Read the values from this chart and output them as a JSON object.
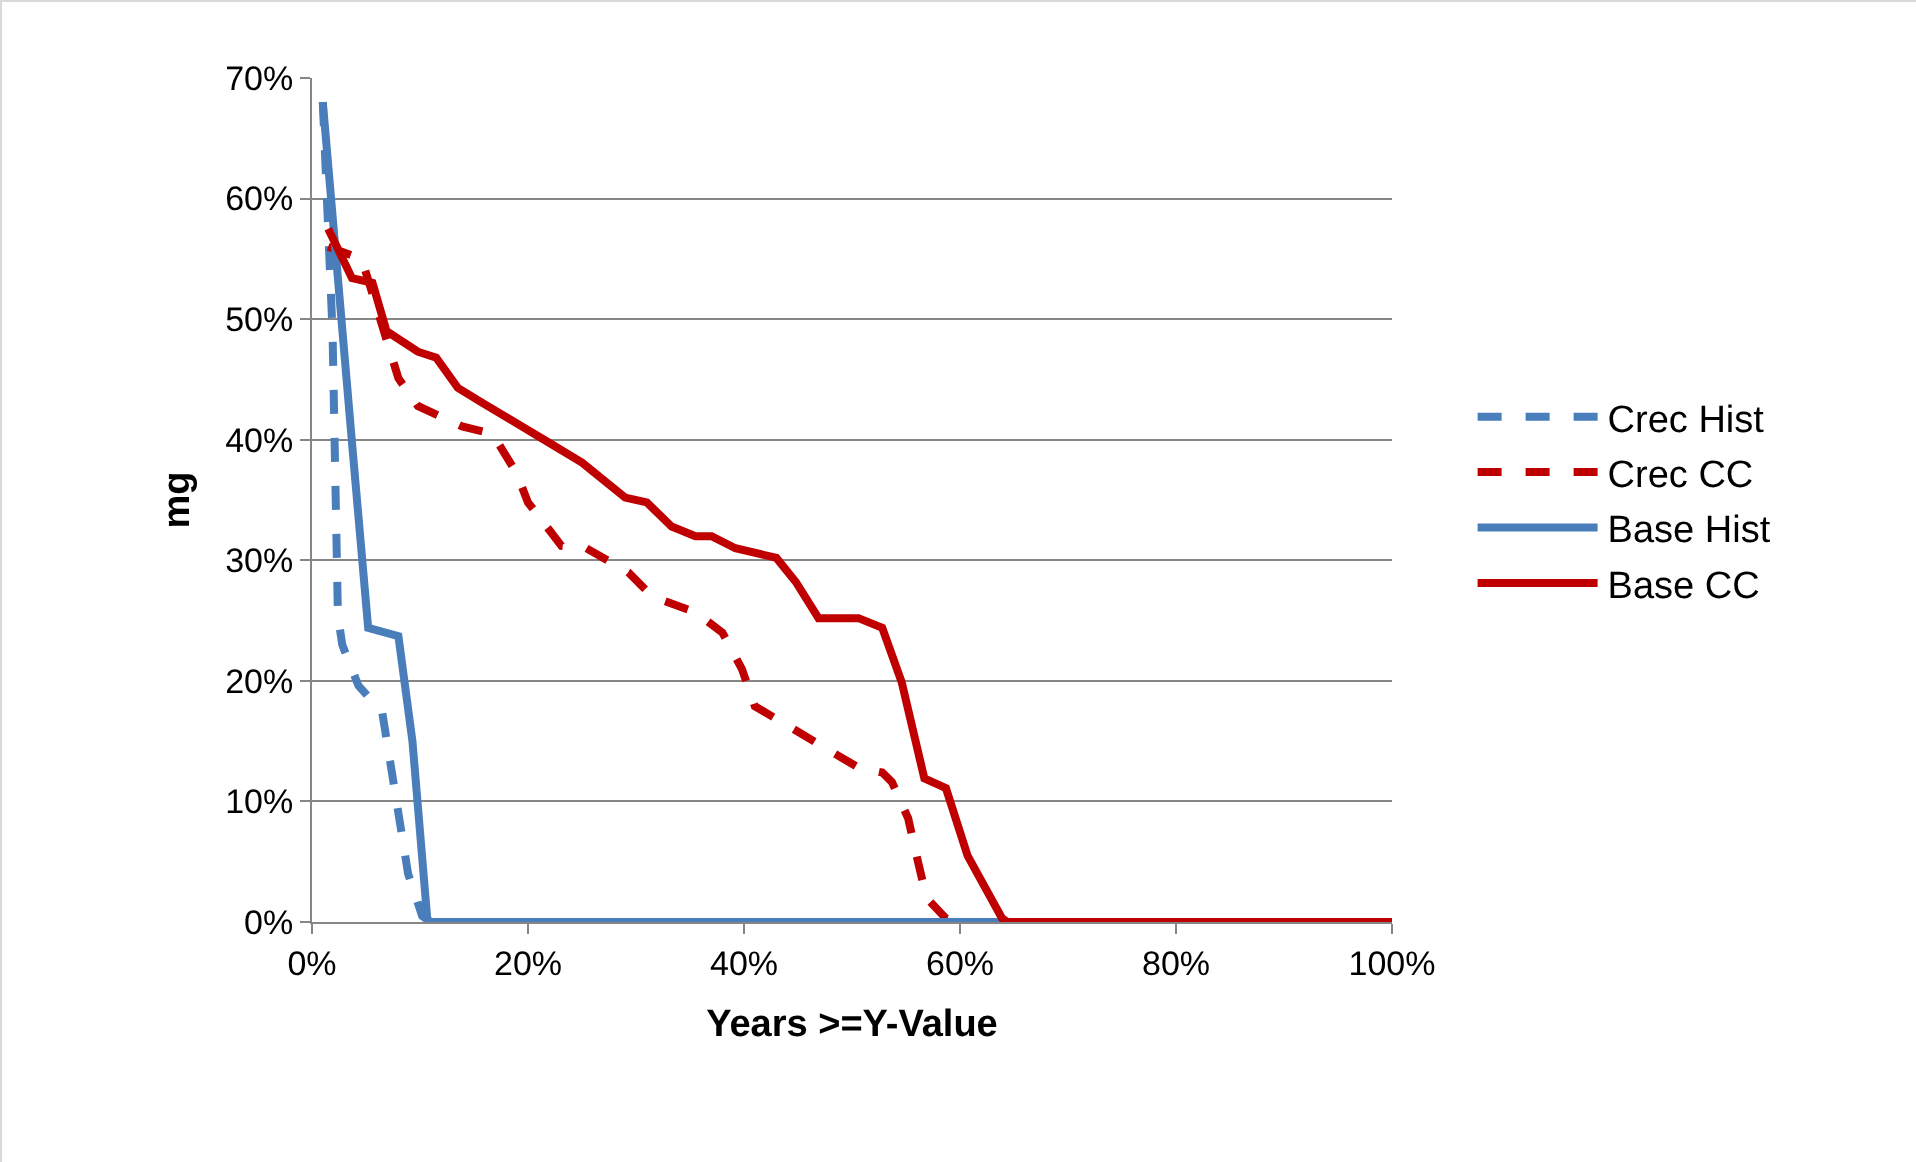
{
  "chart_data": {
    "type": "line",
    "xlabel": "Years >=Y-Value",
    "ylabel": "mg",
    "xlim": [
      0,
      100
    ],
    "xticks": [
      {
        "value": 0,
        "label": "0%"
      },
      {
        "value": 20,
        "label": "20%"
      },
      {
        "value": 40,
        "label": "40%"
      },
      {
        "value": 60,
        "label": "60%"
      },
      {
        "value": 80,
        "label": "80%"
      },
      {
        "value": 100,
        "label": "100%"
      }
    ],
    "ylim": [
      0,
      70
    ],
    "yticks": [
      {
        "value": 0,
        "label": "0%"
      },
      {
        "value": 10,
        "label": "10%"
      },
      {
        "value": 20,
        "label": "20%"
      },
      {
        "value": 30,
        "label": "30%"
      },
      {
        "value": 40,
        "label": "40%"
      },
      {
        "value": 50,
        "label": "50%"
      },
      {
        "value": 60,
        "label": "60%"
      },
      {
        "value": 70,
        "label": "70%"
      }
    ],
    "grid": "y",
    "legend": "right",
    "marker": "none",
    "series": [
      {
        "name": "Crec Hist",
        "color": "#4a7ebb",
        "line_style": "dashed",
        "x": [
          1,
          1.9,
          2.4,
          2.8,
          4.3,
          6.5,
          8.9,
          10.2,
          11,
          30,
          60,
          100
        ],
        "values": [
          68,
          49,
          25.4,
          23,
          19.6,
          17.4,
          4,
          0.5,
          0,
          0,
          0,
          0
        ]
      },
      {
        "name": "Crec CC",
        "color": "#c00000",
        "line_style": "dashed",
        "x": [
          1.5,
          4.6,
          8,
          9.8,
          13.9,
          16.7,
          18.9,
          20,
          23.1,
          25.4,
          29.3,
          31.5,
          35.5,
          38,
          39.8,
          41,
          44.4,
          47.2,
          50.6,
          52.8,
          53.7,
          55.2,
          55.9,
          56.9,
          58.7,
          59.5,
          80,
          100
        ],
        "values": [
          56,
          55,
          45.1,
          42.8,
          41.1,
          40.5,
          37.3,
          34.8,
          31.2,
          31,
          29,
          27,
          25.7,
          24,
          21,
          17.9,
          16.1,
          14.6,
          12.8,
          12.4,
          11.6,
          8.6,
          5.8,
          2,
          0.3,
          0,
          0,
          0
        ]
      },
      {
        "name": "Base Hist",
        "color": "#4a7ebb",
        "line_style": "solid",
        "x": [
          1,
          3.7,
          5.2,
          8,
          9.3,
          10.7,
          30,
          60,
          100
        ],
        "values": [
          68,
          39.8,
          24.4,
          23.7,
          15,
          0,
          0,
          0,
          0
        ]
      },
      {
        "name": "Base CC",
        "color": "#c00000",
        "line_style": "solid",
        "x": [
          1.5,
          3.7,
          5.6,
          6.9,
          9.8,
          11.5,
          13.5,
          15.7,
          21.3,
          25,
          29,
          31,
          33.3,
          35.5,
          37,
          39.2,
          43,
          44.8,
          46.9,
          50.6,
          52.8,
          54.6,
          56.7,
          58.7,
          60.7,
          63.9,
          64.4,
          80,
          100
        ],
        "values": [
          57.5,
          53.4,
          53,
          49,
          47.3,
          46.8,
          44.3,
          43.1,
          40.1,
          38.1,
          35.2,
          34.8,
          32.8,
          32,
          32,
          31,
          30.2,
          28.2,
          25.2,
          25.2,
          24.4,
          19.9,
          11.9,
          11.1,
          5.5,
          0.3,
          0,
          0,
          0
        ]
      }
    ]
  }
}
